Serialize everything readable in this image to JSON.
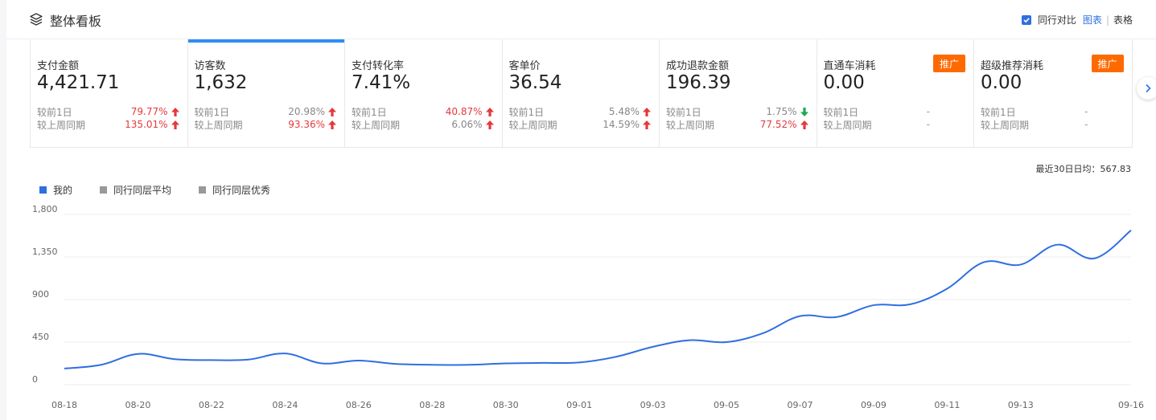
{
  "header": {
    "title": "整体看板",
    "compare_label": "同行对比",
    "chart_link": "图表",
    "table_link": "表格",
    "separator": "|"
  },
  "cards": [
    {
      "label": "支付金额",
      "value": "4,421.71",
      "day_label": "较前1日",
      "day_val": "79.77%",
      "day_dir": "up",
      "day_color": "red",
      "week_label": "较上周同期",
      "week_val": "135.01%",
      "week_dir": "up",
      "week_color": "red"
    },
    {
      "label": "访客数",
      "value": "1,632",
      "active": true,
      "day_label": "较前1日",
      "day_val": "20.98%",
      "day_dir": "up",
      "day_color": "gray",
      "week_label": "较上周同期",
      "week_val": "93.36%",
      "week_dir": "up",
      "week_color": "red"
    },
    {
      "label": "支付转化率",
      "value": "7.41%",
      "day_label": "较前1日",
      "day_val": "40.87%",
      "day_dir": "up",
      "day_color": "red",
      "week_label": "较上周同期",
      "week_val": "6.06%",
      "week_dir": "up",
      "week_color": "gray"
    },
    {
      "label": "客单价",
      "value": "36.54",
      "day_label": "较前1日",
      "day_val": "5.48%",
      "day_dir": "up",
      "day_color": "gray",
      "week_label": "较上周同期",
      "week_val": "14.59%",
      "week_dir": "up",
      "week_color": "gray"
    },
    {
      "label": "成功退款金额",
      "value": "196.39",
      "day_label": "较前1日",
      "day_val": "1.75%",
      "day_dir": "down",
      "day_color": "gray",
      "week_label": "较上周同期",
      "week_val": "77.52%",
      "week_dir": "up",
      "week_color": "red"
    },
    {
      "label": "直通车消耗",
      "value": "0.00",
      "promo": "推广",
      "day_label": "较前1日",
      "day_val": "-",
      "day_dir": "none",
      "day_color": "dash",
      "week_label": "较上周同期",
      "week_val": "-",
      "week_dir": "none",
      "week_color": "dash"
    },
    {
      "label": "超级推荐消耗",
      "value": "0.00",
      "promo": "推广",
      "day_label": "较前1日",
      "day_val": "-",
      "day_dir": "none",
      "day_color": "dash",
      "week_label": "较上周同期",
      "week_val": "-",
      "week_dir": "none",
      "week_color": "dash"
    }
  ],
  "colors": {
    "up": "#e4393c",
    "down": "#1aaa55",
    "accent": "#2f6fe0",
    "line": "#2f6fe0",
    "promo": "#ff6a00",
    "legend_gray": "#999999"
  },
  "avg_text": "最近30日日均：567.83",
  "legend": [
    {
      "name": "我的",
      "color": "#2f6fe0"
    },
    {
      "name": "同行同层平均",
      "color": "#999999"
    },
    {
      "name": "同行同层优秀",
      "color": "#999999"
    }
  ],
  "chart_data": {
    "type": "line",
    "ylim": [
      0,
      1800
    ],
    "yticks": [
      0,
      450,
      900,
      1350,
      1800
    ],
    "ytick_labels": [
      "0",
      "450",
      "900",
      "1,350",
      "1,800"
    ],
    "xtick_labels": [
      "08-18",
      "08-20",
      "08-22",
      "08-24",
      "08-26",
      "08-28",
      "08-30",
      "09-01",
      "09-03",
      "09-05",
      "09-07",
      "09-09",
      "09-11",
      "09-13",
      "09-16"
    ],
    "x": [
      "08-18",
      "08-19",
      "08-20",
      "08-21",
      "08-22",
      "08-23",
      "08-24",
      "08-25",
      "08-26",
      "08-27",
      "08-28",
      "08-29",
      "08-30",
      "08-31",
      "09-01",
      "09-02",
      "09-03",
      "09-04",
      "09-05",
      "09-06",
      "09-07",
      "09-08",
      "09-09",
      "09-10",
      "09-11",
      "09-12",
      "09-13",
      "09-14",
      "09-15",
      "09-16"
    ],
    "series": [
      {
        "name": "我的",
        "values": [
          170,
          210,
          325,
          270,
          260,
          265,
          330,
          225,
          255,
          220,
          210,
          210,
          225,
          230,
          235,
          295,
          400,
          470,
          450,
          545,
          725,
          715,
          840,
          850,
          1015,
          1295,
          1270,
          1480,
          1335,
          1632
        ]
      }
    ]
  }
}
